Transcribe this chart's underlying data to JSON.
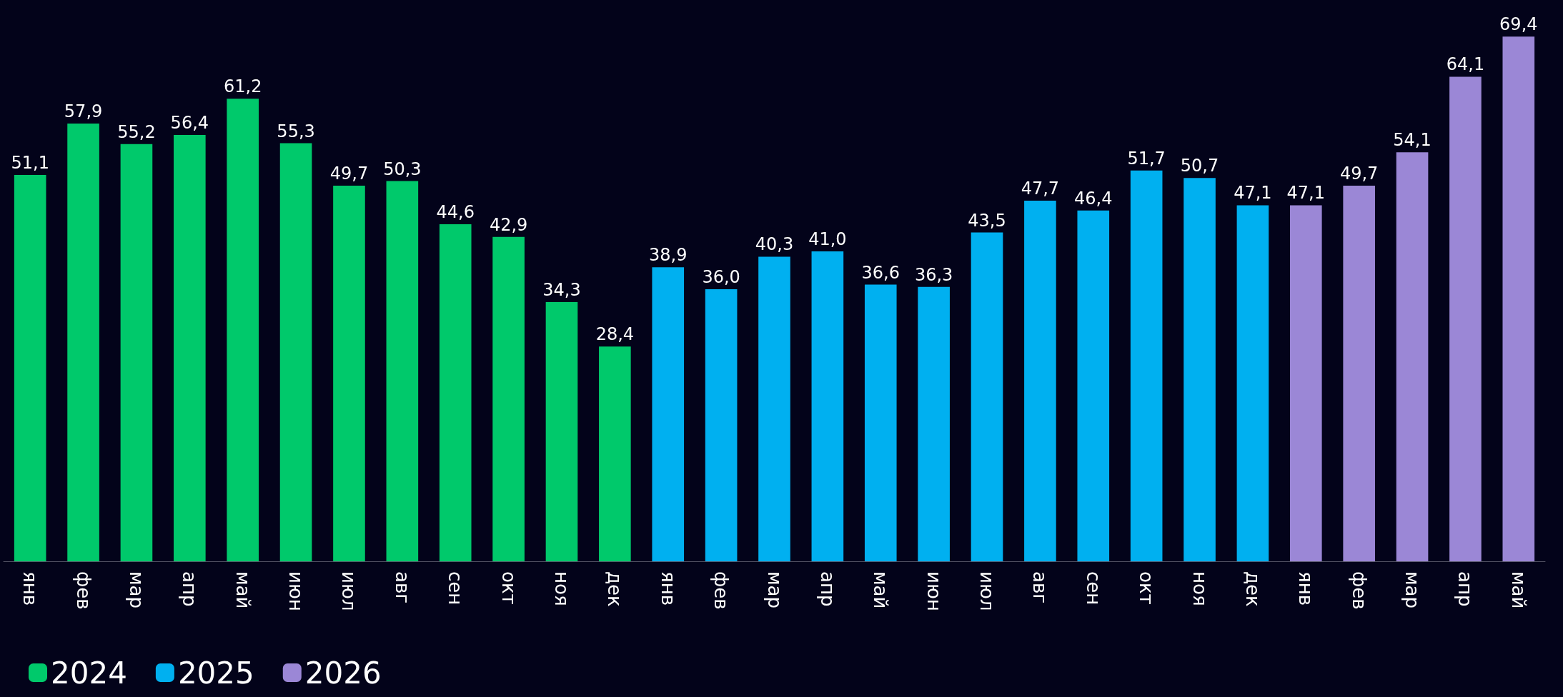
{
  "chart_data": {
    "type": "bar",
    "categories": [
      "янв",
      "фев",
      "мар",
      "апр",
      "май",
      "июн",
      "июл",
      "авг",
      "сен",
      "окт",
      "ноя",
      "дек",
      "янв",
      "фев",
      "мар",
      "апр",
      "май",
      "июн",
      "июл",
      "авг",
      "сен",
      "окт",
      "ноя",
      "дек",
      "янв",
      "фев",
      "мар",
      "апр",
      "май"
    ],
    "series": [
      {
        "name": "2024",
        "color": "#00c96b",
        "values": [
          51.1,
          57.9,
          55.2,
          56.4,
          61.2,
          55.3,
          49.7,
          50.3,
          44.6,
          42.9,
          34.3,
          28.4,
          null,
          null,
          null,
          null,
          null,
          null,
          null,
          null,
          null,
          null,
          null,
          null,
          null,
          null,
          null,
          null,
          null
        ],
        "value_labels": [
          "51,1",
          "57,9",
          "55,2",
          "56,4",
          "61,2",
          "55,3",
          "49,7",
          "50,3",
          "44,6",
          "42,9",
          "34,3",
          "28,4",
          null,
          null,
          null,
          null,
          null,
          null,
          null,
          null,
          null,
          null,
          null,
          null,
          null,
          null,
          null,
          null,
          null
        ]
      },
      {
        "name": "2025",
        "color": "#00b0f0",
        "values": [
          null,
          null,
          null,
          null,
          null,
          null,
          null,
          null,
          null,
          null,
          null,
          null,
          38.9,
          36.0,
          40.3,
          41.0,
          36.6,
          36.3,
          43.5,
          47.7,
          46.4,
          51.7,
          50.7,
          47.1,
          null,
          null,
          null,
          null,
          null
        ],
        "value_labels": [
          null,
          null,
          null,
          null,
          null,
          null,
          null,
          null,
          null,
          null,
          null,
          null,
          "38,9",
          "36,0",
          "40,3",
          "41,0",
          "36,6",
          "36,3",
          "43,5",
          "47,7",
          "46,4",
          "51,7",
          "50,7",
          "47,1",
          null,
          null,
          null,
          null,
          null
        ]
      },
      {
        "name": "2026",
        "color": "#9b87d6",
        "values": [
          null,
          null,
          null,
          null,
          null,
          null,
          null,
          null,
          null,
          null,
          null,
          null,
          null,
          null,
          null,
          null,
          null,
          null,
          null,
          null,
          null,
          null,
          null,
          null,
          47.1,
          49.7,
          54.1,
          64.1,
          69.4
        ],
        "value_labels": [
          null,
          null,
          null,
          null,
          null,
          null,
          null,
          null,
          null,
          null,
          null,
          null,
          null,
          null,
          null,
          null,
          null,
          null,
          null,
          null,
          null,
          null,
          null,
          null,
          "47,1",
          "49,7",
          "54,1",
          "64,1",
          "69,4"
        ]
      }
    ],
    "legend": "bottom left",
    "grid": false
  }
}
